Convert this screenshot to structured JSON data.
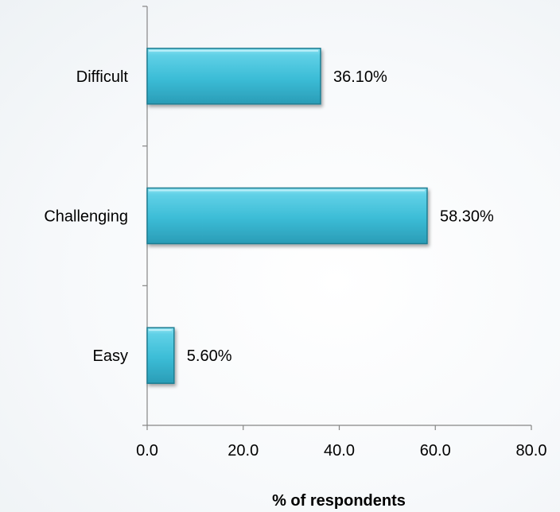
{
  "chart_data": {
    "type": "bar",
    "orientation": "horizontal",
    "categories": [
      "Easy",
      "Challenging",
      "Difficult"
    ],
    "values": [
      5.6,
      58.3,
      36.1
    ],
    "data_labels": [
      "5.60%",
      "58.30%",
      "36.10%"
    ],
    "xlabel": "% of respondents",
    "ylabel": "",
    "xlim": [
      0,
      80
    ],
    "x_ticks": [
      "0.0",
      "20.0",
      "40.0",
      "60.0",
      "80.0"
    ],
    "grid": false,
    "legend": "none",
    "bar_color": "#3bbcd6",
    "bar_edge_color": "#1f7d92"
  }
}
